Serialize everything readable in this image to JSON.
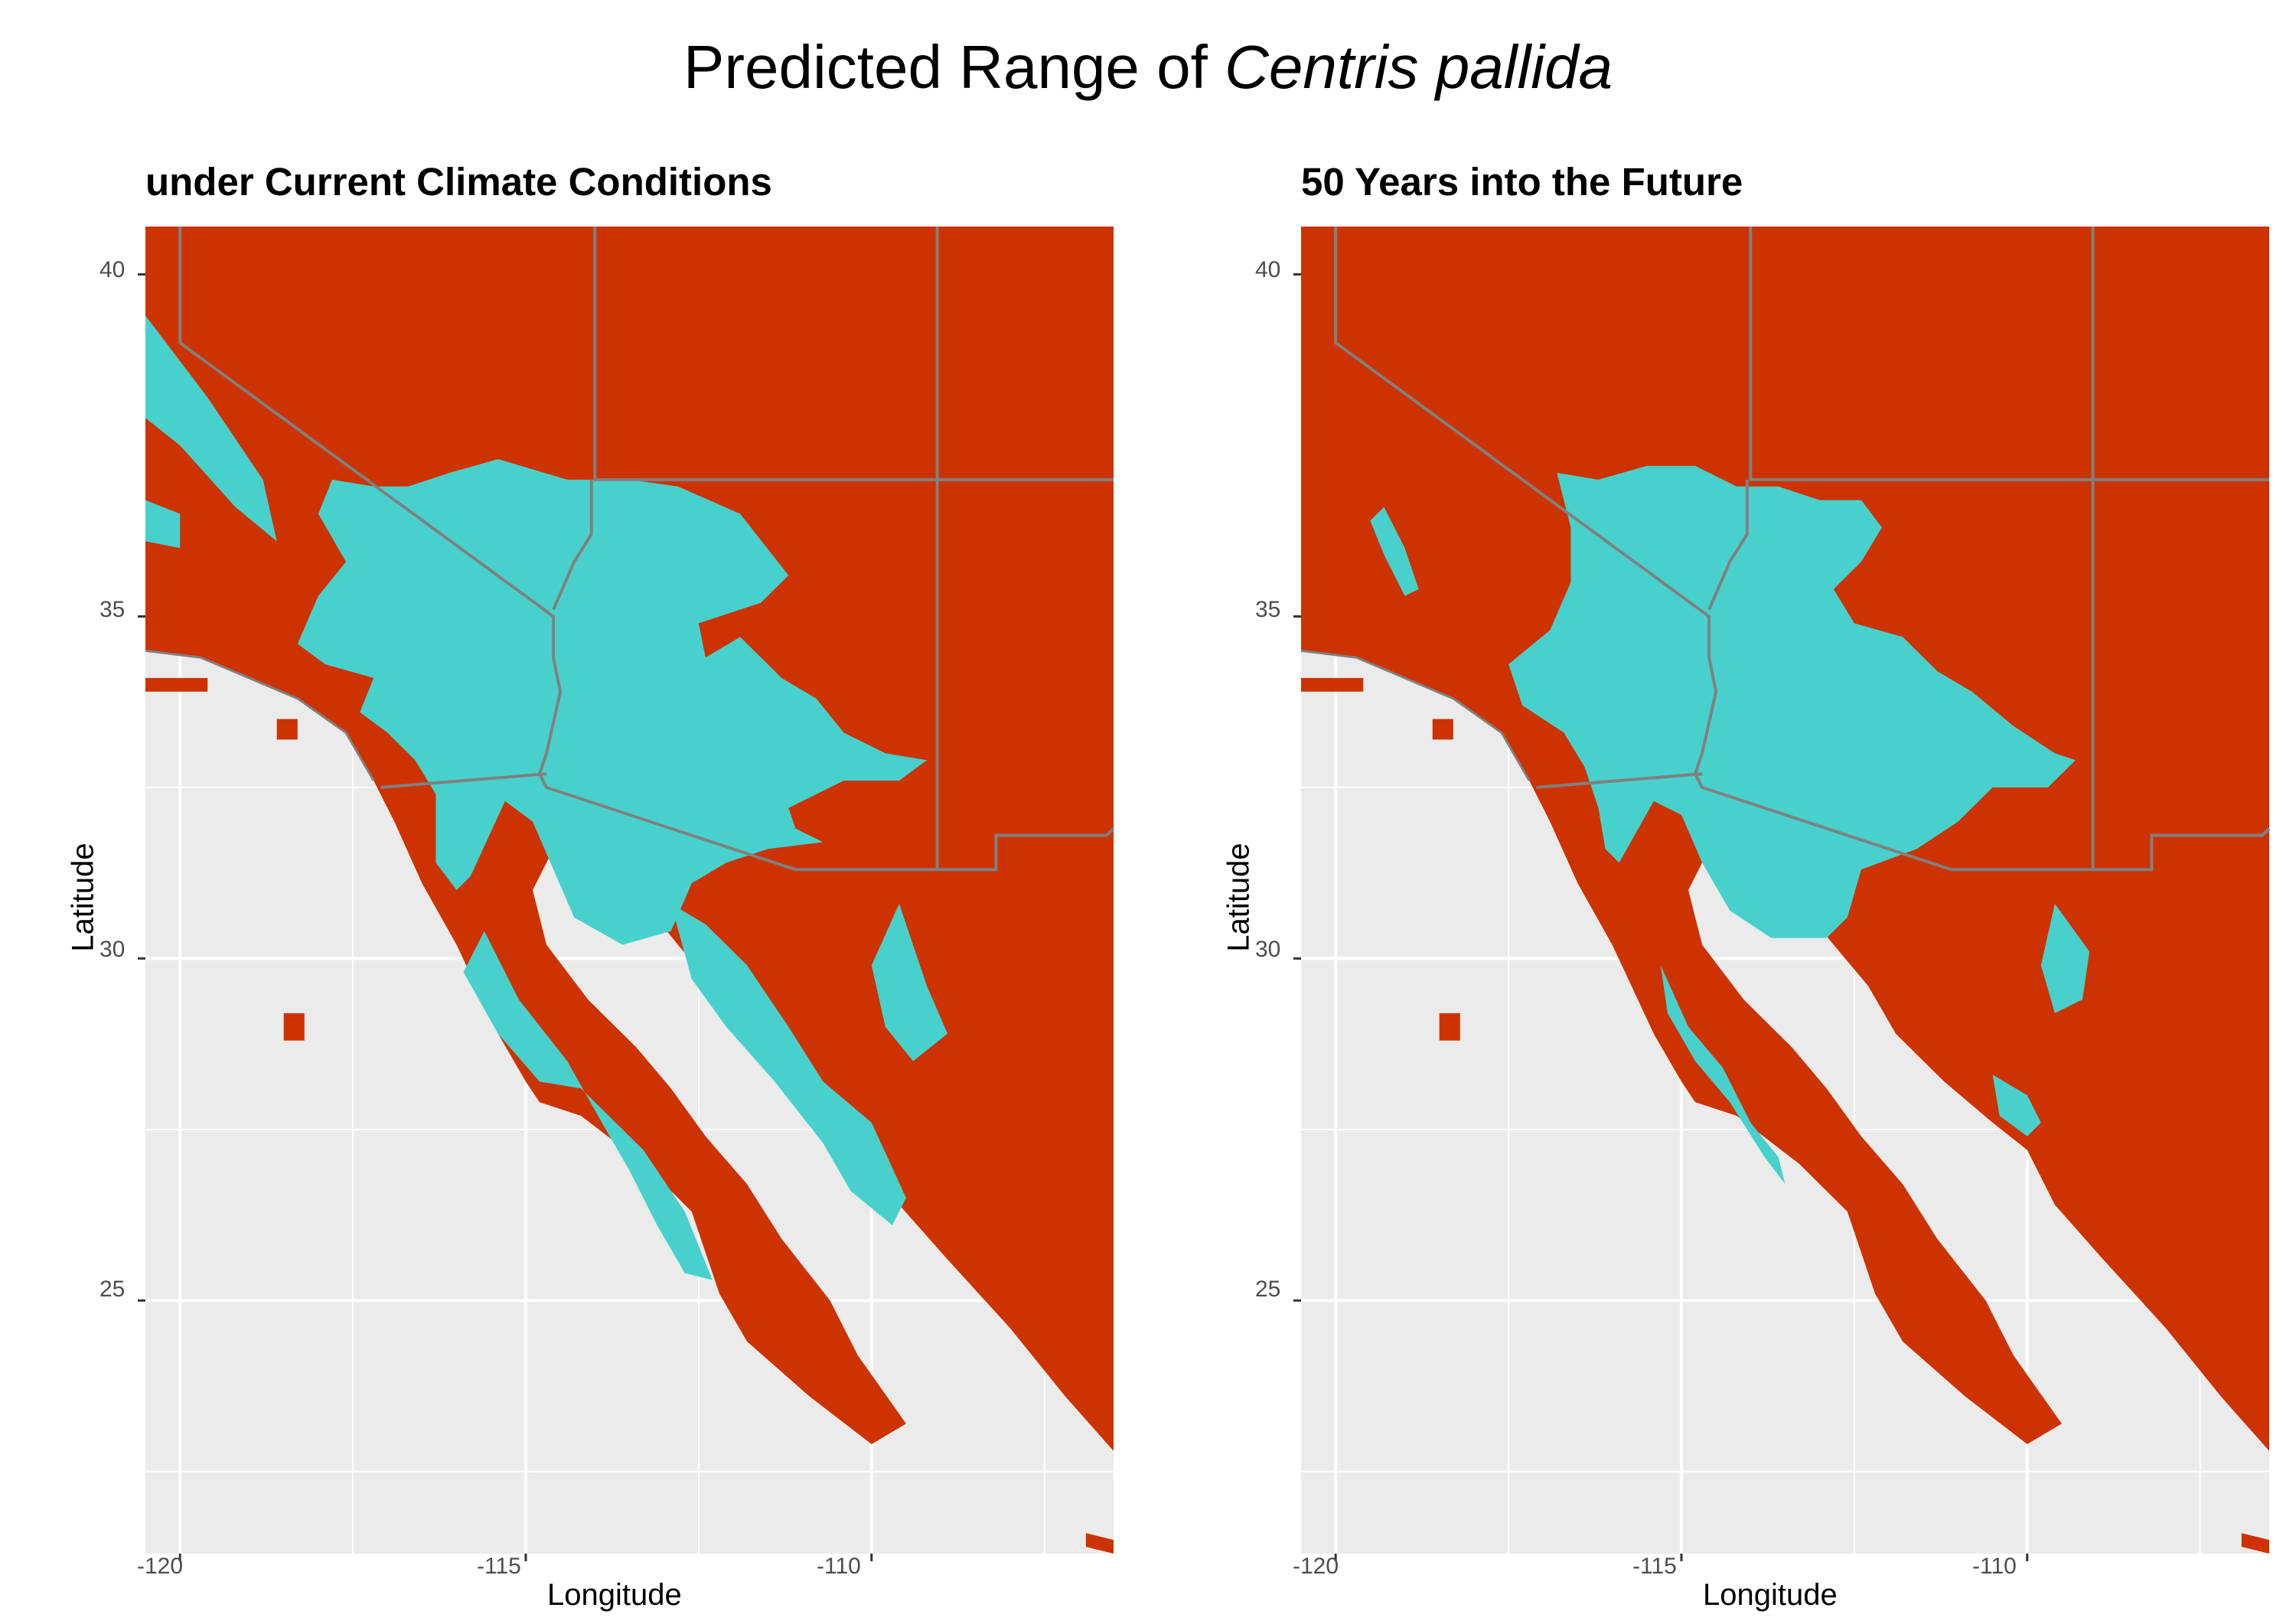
{
  "title": {
    "prefix": "Predicted Range of ",
    "species": "Centris pallida"
  },
  "colors": {
    "panel_background": "#EBEBEB",
    "gridline": "#FFFFFF",
    "not_suitable": "#CC3300",
    "suitable": "#48D1CC",
    "state_border": "#808080",
    "tick_text": "#4D4D4D"
  },
  "legend": "none",
  "panels": [
    {
      "subtitle": "under Current Climate Conditions",
      "xlabel": "Longitude",
      "ylabel": "Latitude",
      "xlim": [
        -120.5,
        -106.5
      ],
      "ylim": [
        21.3,
        40.7
      ],
      "x_ticks": [
        -120,
        -115,
        -110
      ],
      "y_ticks": [
        25,
        30,
        35,
        40
      ],
      "x_tick_labels": [
        "-120",
        "-115",
        "-110"
      ],
      "y_tick_labels": [
        "25",
        "30",
        "35",
        "40"
      ],
      "scenario": "current"
    },
    {
      "subtitle": "50 Years into the Future",
      "xlabel": "Longitude",
      "ylabel": "Latitude",
      "xlim": [
        -120.5,
        -106.5
      ],
      "ylim": [
        21.3,
        40.7
      ],
      "x_ticks": [
        -120,
        -115,
        -110
      ],
      "y_ticks": [
        25,
        30,
        35,
        40
      ],
      "x_tick_labels": [
        "-120",
        "-115",
        "-110"
      ],
      "y_tick_labels": [
        "25",
        "30",
        "35",
        "40"
      ],
      "scenario": "future"
    }
  ],
  "chart_data": [
    {
      "type": "heatmap",
      "title": "under Current Climate Conditions",
      "xlabel": "Longitude",
      "ylabel": "Latitude",
      "xlim": [
        -120.5,
        -106.5
      ],
      "ylim": [
        21.3,
        40.7
      ],
      "grid": true,
      "categories": [
        "not_suitable",
        "suitable"
      ],
      "colors": {
        "not_suitable": "#CC3300",
        "suitable": "#48D1CC"
      },
      "suitable_region_approx": {
        "main_desert_core": {
          "lon": [
            -116.0,
            -110.5
          ],
          "lat": [
            31.0,
            35.5
          ]
        },
        "coastal_strip": {
          "lon": [
            -120.5,
            -118.5
          ],
          "lat": [
            36.0,
            39.5
          ]
        },
        "baja_interior": {
          "lon": [
            -116.0,
            -112.5
          ],
          "lat": [
            26.0,
            30.5
          ]
        },
        "sonora_coast": {
          "lon": [
            -111.5,
            -109.0
          ],
          "lat": [
            25.5,
            29.5
          ]
        }
      }
    },
    {
      "type": "heatmap",
      "title": "50 Years into the Future",
      "xlabel": "Longitude",
      "ylabel": "Latitude",
      "xlim": [
        -120.5,
        -106.5
      ],
      "ylim": [
        21.3,
        40.7
      ],
      "grid": true,
      "categories": [
        "not_suitable",
        "suitable"
      ],
      "colors": {
        "not_suitable": "#CC3300",
        "suitable": "#48D1CC"
      },
      "suitable_region_approx": {
        "main_desert_core": {
          "lon": [
            -115.5,
            -111.0
          ],
          "lat": [
            30.5,
            35.8
          ]
        },
        "baja_interior": {
          "lon": [
            -115.5,
            -113.5
          ],
          "lat": [
            27.0,
            30.0
          ]
        },
        "sonora_coast": {
          "lon": [
            -110.5,
            -109.5
          ],
          "lat": [
            27.5,
            28.5
          ]
        }
      }
    }
  ]
}
